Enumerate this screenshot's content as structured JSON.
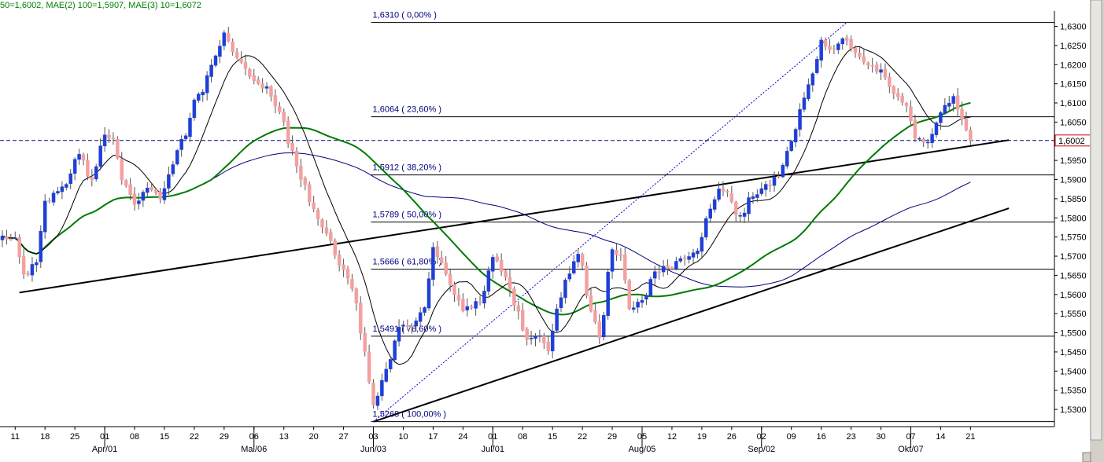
{
  "header": {
    "legend": "50=1,6002, MAE(2) 100=1,5907, MAE(3) 10=1,6072",
    "legend_color": "#008000"
  },
  "colors": {
    "bull": "#1f3fd6",
    "bear": "#f4a0a0",
    "ma_fast": "#000000",
    "ma_50": "#007a00",
    "ma_100": "#000080",
    "fib": "#000000",
    "fib_label": "#000080",
    "current_price_line": "#000080",
    "trendline": "#000000"
  },
  "chart_data": {
    "type": "candlestick",
    "title": "",
    "xlabel": "",
    "ylabel": "",
    "ylim": [
      1.5255,
      1.634
    ],
    "grid": false,
    "x_count": 228,
    "x_ticks": [
      {
        "i": 3,
        "label": "11"
      },
      {
        "i": 10,
        "label": "18"
      },
      {
        "i": 17,
        "label": "25"
      },
      {
        "i": 24,
        "label": "01",
        "month": "Apr/01"
      },
      {
        "i": 31,
        "label": "08"
      },
      {
        "i": 38,
        "label": "15"
      },
      {
        "i": 45,
        "label": "22"
      },
      {
        "i": 52,
        "label": "29"
      },
      {
        "i": 59,
        "label": "06",
        "month": "Mai/06"
      },
      {
        "i": 66,
        "label": "13"
      },
      {
        "i": 73,
        "label": "20"
      },
      {
        "i": 80,
        "label": "27"
      },
      {
        "i": 87,
        "label": "03",
        "month": "Jun/03"
      },
      {
        "i": 94,
        "label": "10"
      },
      {
        "i": 101,
        "label": "17"
      },
      {
        "i": 108,
        "label": "24"
      },
      {
        "i": 115,
        "label": "01",
        "month": "Jul/01"
      },
      {
        "i": 122,
        "label": "08"
      },
      {
        "i": 129,
        "label": "15"
      },
      {
        "i": 136,
        "label": "22"
      },
      {
        "i": 143,
        "label": "29"
      },
      {
        "i": 150,
        "label": "05",
        "month": "Aug/05"
      },
      {
        "i": 157,
        "label": "12"
      },
      {
        "i": 164,
        "label": "19"
      },
      {
        "i": 171,
        "label": "26"
      },
      {
        "i": 178,
        "label": "02",
        "month": "Sep/02"
      },
      {
        "i": 185,
        "label": "09"
      },
      {
        "i": 192,
        "label": "16"
      },
      {
        "i": 199,
        "label": "23"
      },
      {
        "i": 206,
        "label": "30"
      },
      {
        "i": 213,
        "label": "07",
        "month": "Okt/07"
      },
      {
        "i": 220,
        "label": "14"
      },
      {
        "i": 227,
        "label": "21"
      }
    ],
    "y_ticks": [
      "1,5300",
      "1,5350",
      "1,5400",
      "1,5450",
      "1,5500",
      "1,5550",
      "1,5600",
      "1,5650",
      "1,5700",
      "1,5750",
      "1,5800",
      "1,5850",
      "1,5900",
      "1,5950",
      "1,6000",
      "1,6050",
      "1,6100",
      "1,6150",
      "1,6200",
      "1,6250",
      "1,6300"
    ],
    "last_price": "1,6002",
    "fib_levels": [
      {
        "value": 1.631,
        "label": "1,6310 ( 0,00% )"
      },
      {
        "value": 1.6064,
        "label": "1,6064 ( 23,60% )"
      },
      {
        "value": 1.5912,
        "label": "1,5912 ( 38,20% )"
      },
      {
        "value": 1.5789,
        "label": "1,5789 ( 50,00% )"
      },
      {
        "value": 1.5666,
        "label": "1,5666 ( 61,80% )"
      },
      {
        "value": 1.5491,
        "label": "1,5491 ( 78,60% )"
      },
      {
        "value": 1.5268,
        "label": "1,5268 ( 100,00% )"
      }
    ],
    "fib_start_i": 87,
    "trendlines": [
      {
        "i1": 4,
        "v1": 1.5605,
        "i2": 236,
        "v2": 1.6003
      },
      {
        "i1": 87,
        "v1": 1.5268,
        "i2": 236,
        "v2": 1.5825
      }
    ],
    "dotted_line": {
      "i1": 87,
      "v1": 1.5268,
      "i2": 198,
      "v2": 1.631
    },
    "anchors": [
      [
        0,
        1.575
      ],
      [
        3,
        1.574
      ],
      [
        5,
        1.565
      ],
      [
        8,
        1.568
      ],
      [
        10,
        1.584
      ],
      [
        14,
        1.588
      ],
      [
        18,
        1.596
      ],
      [
        21,
        1.59
      ],
      [
        24,
        1.602
      ],
      [
        26,
        1.6
      ],
      [
        28,
        1.59
      ],
      [
        31,
        1.584
      ],
      [
        34,
        1.588
      ],
      [
        37,
        1.585
      ],
      [
        40,
        1.594
      ],
      [
        42,
        1.6
      ],
      [
        46,
        1.612
      ],
      [
        50,
        1.622
      ],
      [
        52,
        1.628
      ],
      [
        55,
        1.622
      ],
      [
        58,
        1.617
      ],
      [
        62,
        1.614
      ],
      [
        65,
        1.608
      ],
      [
        68,
        1.597
      ],
      [
        70,
        1.59
      ],
      [
        73,
        1.582
      ],
      [
        76,
        1.576
      ],
      [
        79,
        1.568
      ],
      [
        82,
        1.562
      ],
      [
        85,
        1.545
      ],
      [
        87,
        1.531
      ],
      [
        90,
        1.54
      ],
      [
        93,
        1.551
      ],
      [
        96,
        1.552
      ],
      [
        99,
        1.556
      ],
      [
        101,
        1.572
      ],
      [
        104,
        1.566
      ],
      [
        106,
        1.56
      ],
      [
        108,
        1.556
      ],
      [
        112,
        1.558
      ],
      [
        115,
        1.57
      ],
      [
        118,
        1.564
      ],
      [
        120,
        1.557
      ],
      [
        123,
        1.549
      ],
      [
        126,
        1.549
      ],
      [
        128,
        1.545
      ],
      [
        130,
        1.556
      ],
      [
        133,
        1.566
      ],
      [
        135,
        1.571
      ],
      [
        138,
        1.556
      ],
      [
        140,
        1.549
      ],
      [
        143,
        1.572
      ],
      [
        145,
        1.57
      ],
      [
        147,
        1.556
      ],
      [
        150,
        1.558
      ],
      [
        153,
        1.566
      ],
      [
        156,
        1.567
      ],
      [
        160,
        1.57
      ],
      [
        163,
        1.572
      ],
      [
        166,
        1.582
      ],
      [
        168,
        1.588
      ],
      [
        170,
        1.586
      ],
      [
        173,
        1.58
      ],
      [
        176,
        1.586
      ],
      [
        179,
        1.588
      ],
      [
        182,
        1.591
      ],
      [
        185,
        1.6
      ],
      [
        188,
        1.611
      ],
      [
        190,
        1.618
      ],
      [
        192,
        1.626
      ],
      [
        195,
        1.624
      ],
      [
        197,
        1.627
      ],
      [
        200,
        1.623
      ],
      [
        203,
        1.62
      ],
      [
        206,
        1.618
      ],
      [
        208,
        1.614
      ],
      [
        210,
        1.611
      ],
      [
        212,
        1.61
      ],
      [
        214,
        1.601
      ],
      [
        216,
        1.599
      ],
      [
        218,
        1.602
      ],
      [
        220,
        1.608
      ],
      [
        223,
        1.611
      ],
      [
        225,
        1.605
      ],
      [
        227,
        1.6
      ]
    ]
  }
}
